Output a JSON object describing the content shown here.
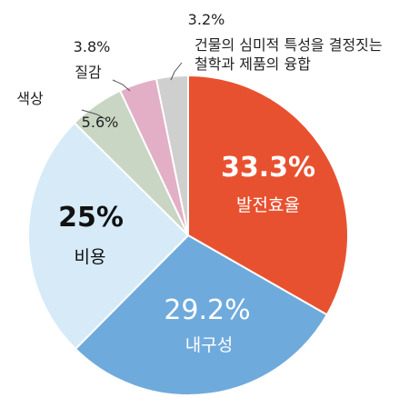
{
  "chart_data": {
    "type": "pie",
    "start": "12 o'clock",
    "direction": "clockwise",
    "slices": [
      {
        "label": "발전효율",
        "value": 33.3,
        "value_text": "33.3%",
        "color": "#E8512F",
        "text_color": "#ffffff"
      },
      {
        "label": "내구성",
        "value": 29.2,
        "value_text": "29.2%",
        "color": "#6FAADC",
        "text_color": "#ffffff"
      },
      {
        "label": "비용",
        "value": 25,
        "value_text": "25%",
        "color": "#D6EAF8",
        "text_color": "#111111"
      },
      {
        "label": "색상",
        "value": 5.6,
        "value_text": "5.6%",
        "color": "#C9D6C4",
        "text_color": "#222222"
      },
      {
        "label": "질감",
        "value": 3.8,
        "value_text": "3.8%",
        "color": "#E2AFC6",
        "text_color": "#222222"
      },
      {
        "label": "건물의 심미적 특성을 결정짓는\n철학과 제품의 융합",
        "value": 3.2,
        "value_text": "3.2%",
        "color": "#CFCFCF",
        "text_color": "#222222"
      }
    ]
  }
}
